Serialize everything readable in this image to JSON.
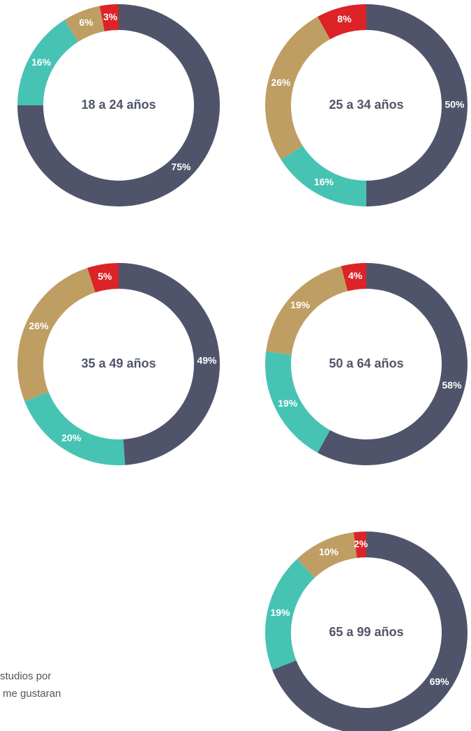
{
  "chart_data": [
    {
      "type": "pie",
      "title": "18 a 24 años",
      "values": [
        75,
        16,
        6,
        3
      ],
      "value_labels": [
        "75%",
        "16%",
        "6%",
        "3%"
      ],
      "colors": [
        "#50546b",
        "#47c3b3",
        "#bf9e63",
        "#dc2327"
      ]
    },
    {
      "type": "pie",
      "title": "25 a 34 años",
      "values": [
        50,
        16,
        26,
        8
      ],
      "value_labels": [
        "50%",
        "16%",
        "26%",
        "8%"
      ],
      "colors": [
        "#50546b",
        "#47c3b3",
        "#bf9e63",
        "#dc2327"
      ]
    },
    {
      "type": "pie",
      "title": "35 a 49 años",
      "values": [
        49,
        20,
        26,
        5
      ],
      "value_labels": [
        "49%",
        "20%",
        "26%",
        "5%"
      ],
      "colors": [
        "#50546b",
        "#47c3b3",
        "#bf9e63",
        "#dc2327"
      ]
    },
    {
      "type": "pie",
      "title": "50 a 64 años",
      "values": [
        58,
        19,
        19,
        4
      ],
      "value_labels": [
        "58%",
        "19%",
        "19%",
        "4%"
      ],
      "colors": [
        "#50546b",
        "#47c3b3",
        "#bf9e63",
        "#dc2327"
      ]
    },
    {
      "type": "pie",
      "title": "65 a 99 años",
      "values": [
        69,
        19,
        10,
        2
      ],
      "value_labels": [
        "69%",
        "19%",
        "10%",
        "2%"
      ],
      "colors": [
        "#50546b",
        "#47c3b3",
        "#bf9e63",
        "#dc2327"
      ]
    }
  ],
  "text": {
    "lines": [
      "studios por",
      "me gustaran"
    ]
  }
}
